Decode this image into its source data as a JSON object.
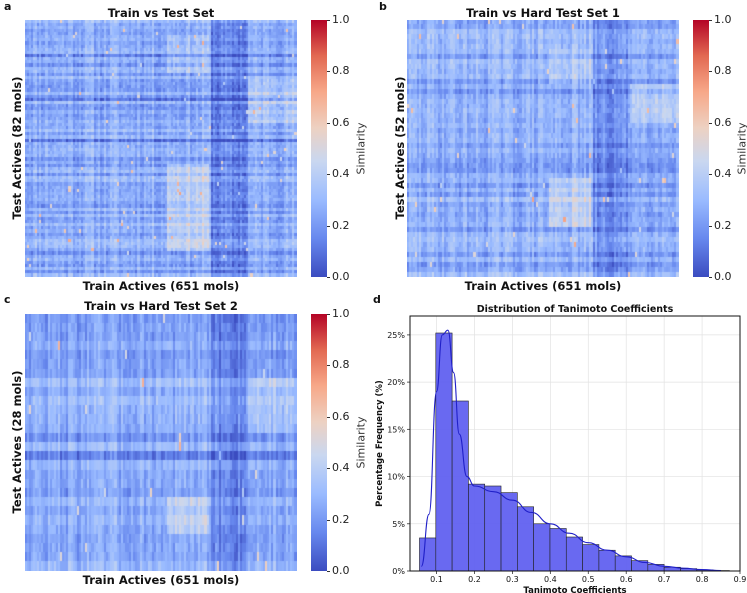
{
  "panels": {
    "a": {
      "label": "a",
      "title": "Train vs Test Set",
      "xlabel": "Train Actives (651 mols)",
      "ylabel": "Test Actives (82 mols)",
      "colorbar_label": "Similarity"
    },
    "b": {
      "label": "b",
      "title": "Train vs Hard Test Set 1",
      "xlabel": "Train Actives (651 mols)",
      "ylabel": "Test Actives (52 mols)",
      "colorbar_label": "Similarity"
    },
    "c": {
      "label": "c",
      "title": "Train vs Hard Test Set 2",
      "xlabel": "Train Actives (651 mols)",
      "ylabel": "Test Actives (28 mols)",
      "colorbar_label": "Similarity"
    },
    "d": {
      "label": "d"
    }
  },
  "colorbar_ticks": [
    "0.0",
    "0.2",
    "0.4",
    "0.6",
    "0.8",
    "1.0"
  ],
  "colors": {
    "cool": "#3b4cc0",
    "warm": "#b40426",
    "hist_fill": "#5c5cf0",
    "hist_edge": "#222222",
    "kde": "#2020c8"
  },
  "chart_data": [
    {
      "type": "heatmap",
      "panel": "a",
      "title": "Train vs Test Set",
      "xlabel": "Train Actives (651 mols)",
      "ylabel": "Test Actives (82 mols)",
      "rows": 82,
      "cols": 651,
      "value_range": [
        0.0,
        1.0
      ],
      "colorbar_label": "Similarity"
    },
    {
      "type": "heatmap",
      "panel": "b",
      "title": "Train vs Hard Test Set 1",
      "xlabel": "Train Actives (651 mols)",
      "ylabel": "Test Actives (52 mols)",
      "rows": 52,
      "cols": 651,
      "value_range": [
        0.0,
        1.0
      ],
      "colorbar_label": "Similarity"
    },
    {
      "type": "heatmap",
      "panel": "c",
      "title": "Train vs Hard Test Set 2",
      "xlabel": "Train Actives (651 mols)",
      "ylabel": "Test Actives (28 mols)",
      "rows": 28,
      "cols": 651,
      "value_range": [
        0.0,
        1.0
      ],
      "colorbar_label": "Similarity"
    },
    {
      "type": "bar",
      "panel": "d",
      "title": "Distribution of Tanimoto Coefficients",
      "xlabel": "Tanimoto Coefficients",
      "ylabel": "Percentage Frequency (%)",
      "xlim": [
        0.03,
        0.9
      ],
      "ylim": [
        0,
        27
      ],
      "xticks": [
        0.1,
        0.2,
        0.3,
        0.4,
        0.5,
        0.6,
        0.7,
        0.8,
        0.9
      ],
      "xtick_labels": [
        "0.1",
        "0.2",
        "0.3",
        "0.4",
        "0.5",
        "0.6",
        "0.7",
        "0.8",
        "0.9"
      ],
      "yticks": [
        0,
        5,
        10,
        15,
        20,
        25
      ],
      "ytick_labels": [
        "0%",
        "5%",
        "10%",
        "15%",
        "20%",
        "25%"
      ],
      "bin_width": 0.043,
      "bin_starts": [
        0.055,
        0.098,
        0.141,
        0.184,
        0.227,
        0.27,
        0.313,
        0.356,
        0.399,
        0.442,
        0.485,
        0.528,
        0.571,
        0.614,
        0.657,
        0.7,
        0.743,
        0.786,
        0.829
      ],
      "values": [
        3.5,
        25.2,
        18.0,
        9.2,
        9.0,
        8.3,
        6.8,
        5.0,
        4.5,
        3.6,
        2.8,
        2.2,
        1.6,
        1.1,
        0.7,
        0.4,
        0.25,
        0.12,
        0.05
      ],
      "kde": {
        "x": [
          0.06,
          0.08,
          0.1,
          0.115,
          0.13,
          0.145,
          0.16,
          0.18,
          0.2,
          0.25,
          0.3,
          0.35,
          0.4,
          0.45,
          0.5,
          0.55,
          0.6,
          0.65,
          0.7,
          0.75,
          0.8,
          0.85
        ],
        "y": [
          0.5,
          6.0,
          19.0,
          25.0,
          25.5,
          21.0,
          14.5,
          10.0,
          9.0,
          8.4,
          7.5,
          6.2,
          5.0,
          4.0,
          3.0,
          2.2,
          1.5,
          0.9,
          0.5,
          0.3,
          0.15,
          0.05
        ]
      },
      "grid": true
    }
  ]
}
